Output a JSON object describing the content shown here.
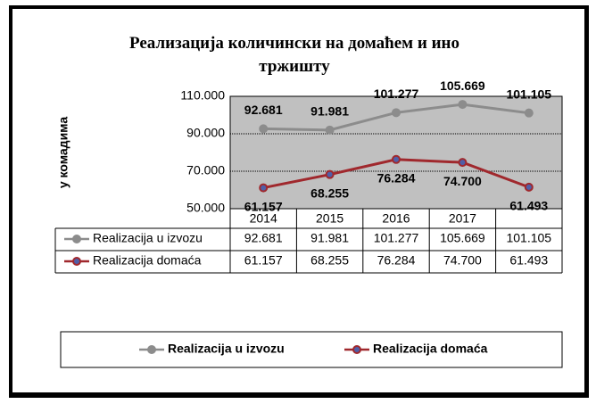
{
  "chart_data": {
    "type": "line",
    "title": "Реализација количински на домаћем и ино тржишту",
    "y_label": "у комадима",
    "categories": [
      "2014",
      "2015",
      "2016",
      "2017",
      null
    ],
    "series": [
      {
        "name": "Realizacija u izvozu",
        "color": "#8c8c8c",
        "values": [
          92681,
          91981,
          101277,
          105669,
          101105
        ],
        "value_labels": [
          "92.681",
          "91.981",
          "101.277",
          "105.669",
          "101.105"
        ]
      },
      {
        "name": "Realizacija domaća",
        "color": "#a0282d",
        "values": [
          61157,
          68255,
          76284,
          74700,
          61493
        ],
        "value_labels": [
          "61.157",
          "68.255",
          "76.284",
          "74.700",
          "61.493"
        ]
      }
    ],
    "ylim": [
      50000,
      110000
    ],
    "yticks": [
      {
        "value": 50000,
        "label": "50.000"
      },
      {
        "value": 70000,
        "label": "70.000"
      },
      {
        "value": 90000,
        "label": "90.000"
      },
      {
        "value": 110000,
        "label": "110.000"
      }
    ],
    "grid": true,
    "legend": "bottom",
    "data_table": true
  }
}
